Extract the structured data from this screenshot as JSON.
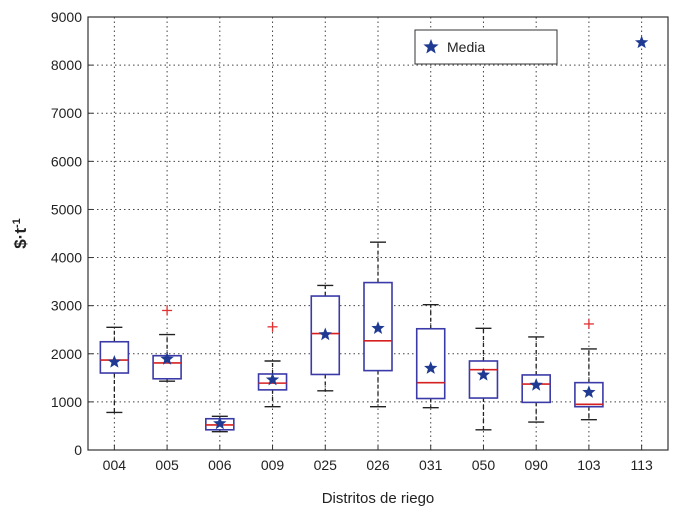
{
  "chart_data": {
    "type": "box",
    "xlabel": "Distritos de riego",
    "ylabel": "$·t",
    "ylabel_superscript": "-1",
    "ylim": [
      0,
      9000
    ],
    "yticks": [
      0,
      1000,
      2000,
      3000,
      4000,
      5000,
      6000,
      7000,
      8000,
      9000
    ],
    "grid": true,
    "legend": {
      "position": "top-right",
      "entries": [
        {
          "label": "Media",
          "marker": "star",
          "color": "#1f3a93"
        }
      ]
    },
    "categories": [
      "004",
      "005",
      "006",
      "009",
      "025",
      "026",
      "031",
      "050",
      "090",
      "103",
      "113"
    ],
    "boxes": [
      {
        "category": "004",
        "whisker_low": 780,
        "q1": 1600,
        "median": 1870,
        "q3": 2250,
        "whisker_high": 2550,
        "mean": 1830,
        "outliers": []
      },
      {
        "category": "005",
        "whisker_low": 1430,
        "q1": 1480,
        "median": 1810,
        "q3": 1960,
        "whisker_high": 2400,
        "mean": 1890,
        "outliers": [
          2900
        ]
      },
      {
        "category": "006",
        "whisker_low": 380,
        "q1": 420,
        "median": 520,
        "q3": 650,
        "whisker_high": 700,
        "mean": 550,
        "outliers": []
      },
      {
        "category": "009",
        "whisker_low": 900,
        "q1": 1250,
        "median": 1390,
        "q3": 1580,
        "whisker_high": 1850,
        "mean": 1460,
        "outliers": [
          2560
        ]
      },
      {
        "category": "025",
        "whisker_low": 1230,
        "q1": 1570,
        "median": 2420,
        "q3": 3200,
        "whisker_high": 3420,
        "mean": 2400,
        "outliers": []
      },
      {
        "category": "026",
        "whisker_low": 900,
        "q1": 1650,
        "median": 2270,
        "q3": 3480,
        "whisker_high": 4320,
        "mean": 2530,
        "outliers": []
      },
      {
        "category": "031",
        "whisker_low": 880,
        "q1": 1070,
        "median": 1400,
        "q3": 2520,
        "whisker_high": 3020,
        "mean": 1700,
        "outliers": []
      },
      {
        "category": "050",
        "whisker_low": 420,
        "q1": 1080,
        "median": 1670,
        "q3": 1850,
        "whisker_high": 2530,
        "mean": 1560,
        "outliers": []
      },
      {
        "category": "090",
        "whisker_low": 580,
        "q1": 990,
        "median": 1370,
        "q3": 1560,
        "whisker_high": 2350,
        "mean": 1350,
        "outliers": []
      },
      {
        "category": "103",
        "whisker_low": 630,
        "q1": 900,
        "median": 950,
        "q3": 1400,
        "whisker_high": 2100,
        "mean": 1200,
        "outliers": [
          2620
        ]
      },
      {
        "category": "113",
        "mean": 8470
      }
    ],
    "colors": {
      "box": "#3a3aa8",
      "median": "#d62020",
      "whisker": "#222222",
      "outlier": "#e03030",
      "mean_star": "#1f3a93",
      "grid": "#444444"
    }
  }
}
